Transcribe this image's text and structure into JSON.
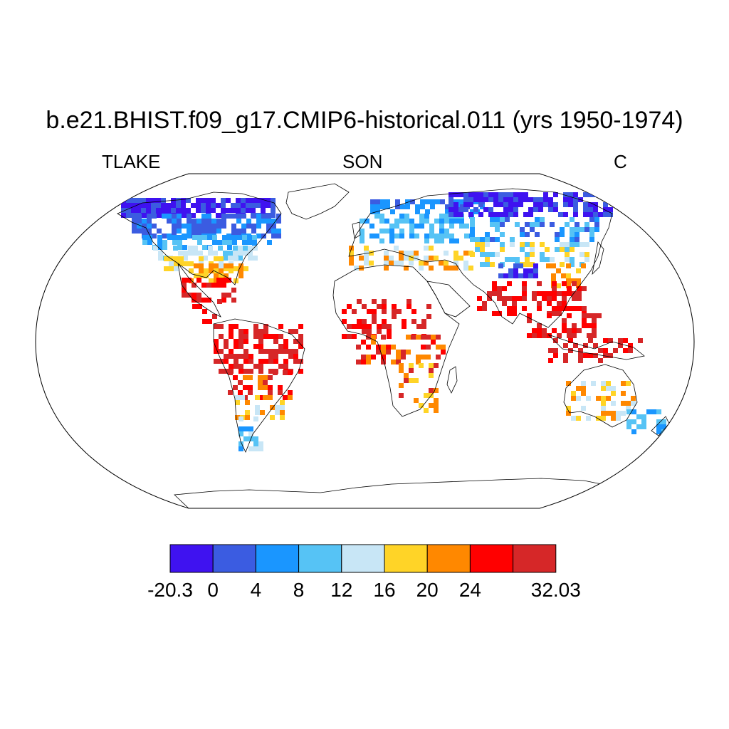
{
  "title": "b.e21.BHIST.f09_g17.CMIP6-historical.011 (yrs 1950-1974)",
  "variable": "TLAKE",
  "season": "SON",
  "units": "C",
  "colorbar": {
    "colors": [
      "#3f12f0",
      "#3b5ce1",
      "#1a96ff",
      "#56c3f5",
      "#c8e6f6",
      "#ffd427",
      "#ff8800",
      "#ff0000",
      "#d62728"
    ],
    "labels": [
      "-20.3",
      "0",
      "4",
      "8",
      "12",
      "16",
      "20",
      "24",
      "",
      "32.03"
    ]
  }
}
